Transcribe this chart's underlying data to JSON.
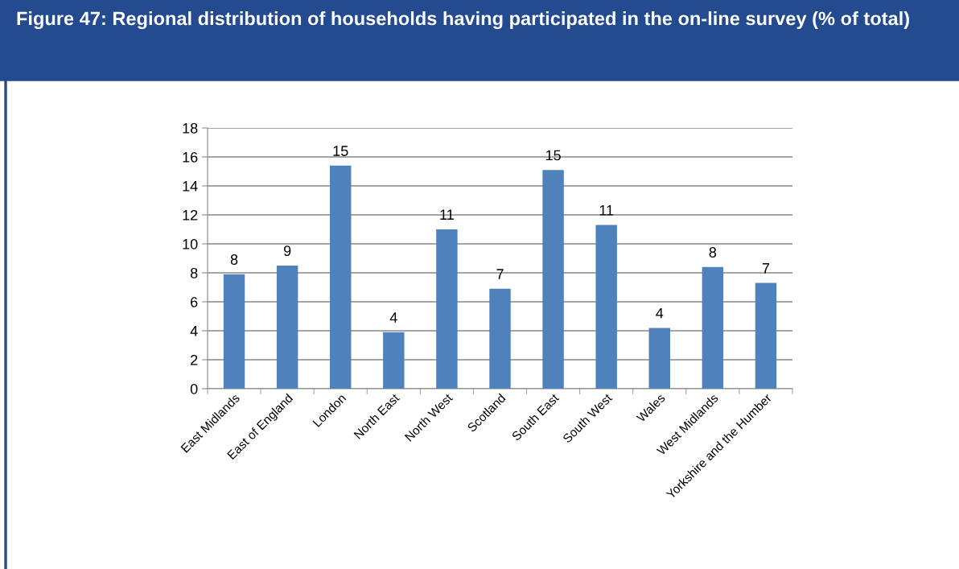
{
  "chart_data": {
    "type": "bar",
    "title": "Figure 47: Regional distribution of households having participated in the on-line survey (% of total)",
    "categories": [
      "East Midlands",
      "East of England",
      "London",
      "North East",
      "North West",
      "Scotland",
      "South East",
      "South West",
      "Wales",
      "West Midlands",
      "Yorkshire and the Humber"
    ],
    "values": [
      7.9,
      8.5,
      15.4,
      3.9,
      11.0,
      6.9,
      15.1,
      11.3,
      4.2,
      8.4,
      7.3
    ],
    "value_labels": [
      "8",
      "9",
      "15",
      "4",
      "11",
      "7",
      "15",
      "11",
      "4",
      "8",
      "7"
    ],
    "color": "#4f81bd",
    "ylim": [
      0,
      18
    ],
    "yticks": [
      0,
      2,
      4,
      6,
      8,
      10,
      12,
      14,
      16,
      18
    ],
    "grid": "y",
    "legend": false
  }
}
